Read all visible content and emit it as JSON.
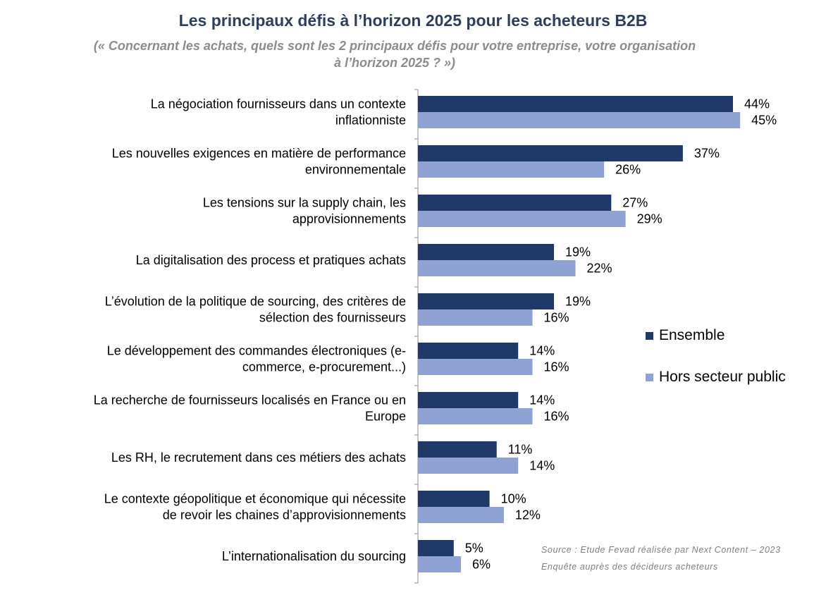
{
  "title": "Les principaux défis à l’horizon 2025 pour les acheteurs B2B",
  "subtitle_line1": "(« Concernant les achats, quels sont les 2 principaux défis pour votre entreprise, votre organisation",
  "subtitle_line2": "à l’horizon 2025 ? »)",
  "colors": {
    "ensemble": "#1f3a68",
    "hors_secteur_public": "#8fa2d4"
  },
  "source_line1": "Source : Etude Fevad réalisée par Next Content – 2023",
  "source_line2": "Enquête auprès des décideurs acheteurs",
  "chart_data": {
    "type": "bar",
    "orientation": "horizontal",
    "title": "Les principaux défis à l’horizon 2025 pour les acheteurs B2B",
    "categories": [
      [
        "La négociation fournisseurs dans un contexte",
        "inflationniste"
      ],
      [
        "Les nouvelles exigences en matière de performance",
        "environnementale"
      ],
      [
        "Les tensions sur la supply chain, les",
        "approvisionnements"
      ],
      [
        "La digitalisation des process et pratiques achats"
      ],
      [
        "L’évolution  de la politique de sourcing, des critères de",
        "sélection des fournisseurs"
      ],
      [
        "Le développement des commandes électroniques (e-",
        "commerce, e-procurement...)"
      ],
      [
        "La recherche de fournisseurs localisés en France ou en",
        "Europe"
      ],
      [
        "Les RH, le recrutement dans ces métiers des achats"
      ],
      [
        "Le contexte géopolitique et économique qui nécessite",
        "de revoir les chaines d’approvisionnements"
      ],
      [
        "L’internationalisation  du sourcing"
      ]
    ],
    "series": [
      {
        "name": "Ensemble",
        "values": [
          44,
          37,
          27,
          19,
          19,
          14,
          14,
          11,
          10,
          5
        ],
        "labels": [
          "44%",
          "37%",
          "27%",
          "19%",
          "19%",
          "14%",
          "14%",
          "11%",
          "10%",
          "5%"
        ]
      },
      {
        "name": "Hors secteur public",
        "values": [
          45,
          26,
          29,
          22,
          16,
          16,
          16,
          14,
          12,
          6
        ],
        "labels": [
          "45%",
          "26%",
          "29%",
          "22%",
          "16%",
          "16%",
          "16%",
          "14%",
          "12%",
          "6%"
        ]
      }
    ],
    "xlim": [
      0,
      50
    ],
    "legend_position": "right",
    "grid": false
  }
}
